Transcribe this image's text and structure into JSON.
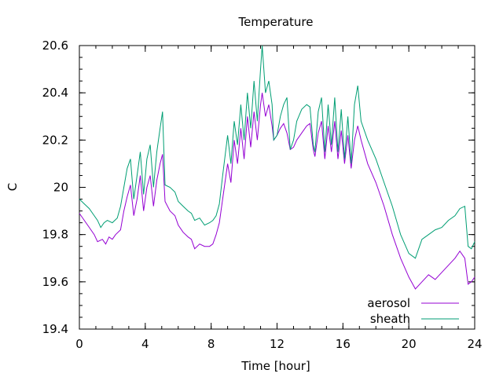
{
  "chart_data": {
    "type": "line",
    "title": "Temperature",
    "xlabel": "Time [hour]",
    "ylabel": "C",
    "xlim": [
      0,
      24
    ],
    "ylim": [
      19.4,
      20.6
    ],
    "xticks": [
      0,
      4,
      8,
      12,
      16,
      20,
      24
    ],
    "xtick_labels": [
      "0",
      "4",
      "8",
      "12",
      "16",
      "20",
      "24"
    ],
    "yticks": [
      19.4,
      19.6,
      19.8,
      20,
      20.2,
      20.4,
      20.6
    ],
    "ytick_labels": [
      "19.4",
      "19.6",
      "19.8",
      "20",
      "20.2",
      "20.4",
      "20.6"
    ],
    "grid": false,
    "legend_position": "bottom-right",
    "series": [
      {
        "name": "aerosol",
        "color": "#9400d3",
        "points": [
          [
            0,
            19.89
          ],
          [
            0.3,
            19.86
          ],
          [
            0.6,
            19.83
          ],
          [
            0.9,
            19.8
          ],
          [
            1.1,
            19.77
          ],
          [
            1.4,
            19.78
          ],
          [
            1.6,
            19.76
          ],
          [
            1.8,
            19.79
          ],
          [
            2.0,
            19.78
          ],
          [
            2.2,
            19.8
          ],
          [
            2.5,
            19.82
          ],
          [
            2.7,
            19.9
          ],
          [
            2.9,
            19.96
          ],
          [
            3.1,
            20.01
          ],
          [
            3.3,
            19.88
          ],
          [
            3.5,
            19.95
          ],
          [
            3.7,
            20.05
          ],
          [
            3.9,
            19.9
          ],
          [
            4.1,
            20.0
          ],
          [
            4.3,
            20.05
          ],
          [
            4.5,
            19.92
          ],
          [
            4.7,
            20.03
          ],
          [
            4.9,
            20.1
          ],
          [
            5.05,
            20.14
          ],
          [
            5.2,
            19.94
          ],
          [
            5.5,
            19.9
          ],
          [
            5.8,
            19.88
          ],
          [
            6.0,
            19.84
          ],
          [
            6.3,
            19.81
          ],
          [
            6.6,
            19.79
          ],
          [
            6.8,
            19.78
          ],
          [
            7.0,
            19.74
          ],
          [
            7.3,
            19.76
          ],
          [
            7.6,
            19.75
          ],
          [
            7.9,
            19.75
          ],
          [
            8.1,
            19.76
          ],
          [
            8.3,
            19.8
          ],
          [
            8.5,
            19.85
          ],
          [
            8.7,
            19.95
          ],
          [
            9.0,
            20.1
          ],
          [
            9.2,
            20.02
          ],
          [
            9.4,
            20.2
          ],
          [
            9.6,
            20.1
          ],
          [
            9.8,
            20.25
          ],
          [
            10.0,
            20.12
          ],
          [
            10.2,
            20.3
          ],
          [
            10.4,
            20.17
          ],
          [
            10.6,
            20.32
          ],
          [
            10.8,
            20.2
          ],
          [
            11.0,
            20.35
          ],
          [
            11.1,
            20.4
          ],
          [
            11.3,
            20.3
          ],
          [
            11.5,
            20.35
          ],
          [
            11.7,
            20.26
          ],
          [
            11.8,
            20.2
          ],
          [
            12.0,
            20.22
          ],
          [
            12.2,
            20.25
          ],
          [
            12.4,
            20.27
          ],
          [
            12.6,
            20.23
          ],
          [
            12.8,
            20.16
          ],
          [
            13.0,
            20.17
          ],
          [
            13.2,
            20.2
          ],
          [
            13.5,
            20.23
          ],
          [
            13.8,
            20.26
          ],
          [
            14.0,
            20.27
          ],
          [
            14.2,
            20.16
          ],
          [
            14.3,
            20.13
          ],
          [
            14.5,
            20.23
          ],
          [
            14.7,
            20.28
          ],
          [
            14.9,
            20.12
          ],
          [
            15.1,
            20.26
          ],
          [
            15.3,
            20.15
          ],
          [
            15.5,
            20.28
          ],
          [
            15.7,
            20.12
          ],
          [
            15.9,
            20.24
          ],
          [
            16.1,
            20.1
          ],
          [
            16.3,
            20.22
          ],
          [
            16.5,
            20.08
          ],
          [
            16.7,
            20.2
          ],
          [
            16.9,
            20.26
          ],
          [
            17.1,
            20.2
          ],
          [
            17.5,
            20.1
          ],
          [
            18.0,
            20.02
          ],
          [
            18.5,
            19.92
          ],
          [
            19.0,
            19.8
          ],
          [
            19.5,
            19.7
          ],
          [
            20.0,
            19.62
          ],
          [
            20.4,
            19.57
          ],
          [
            20.8,
            19.6
          ],
          [
            21.2,
            19.63
          ],
          [
            21.6,
            19.61
          ],
          [
            22.0,
            19.64
          ],
          [
            22.4,
            19.67
          ],
          [
            22.8,
            19.7
          ],
          [
            23.1,
            19.73
          ],
          [
            23.4,
            19.7
          ],
          [
            23.6,
            19.59
          ],
          [
            23.8,
            19.6
          ],
          [
            24.0,
            19.62
          ]
        ]
      },
      {
        "name": "sheath",
        "color": "#009e73",
        "points": [
          [
            0,
            19.95
          ],
          [
            0.3,
            19.93
          ],
          [
            0.6,
            19.91
          ],
          [
            0.9,
            19.88
          ],
          [
            1.1,
            19.86
          ],
          [
            1.3,
            19.83
          ],
          [
            1.5,
            19.85
          ],
          [
            1.7,
            19.86
          ],
          [
            2.0,
            19.85
          ],
          [
            2.3,
            19.87
          ],
          [
            2.5,
            19.92
          ],
          [
            2.7,
            20.0
          ],
          [
            2.9,
            20.08
          ],
          [
            3.1,
            20.12
          ],
          [
            3.3,
            19.95
          ],
          [
            3.5,
            20.05
          ],
          [
            3.7,
            20.15
          ],
          [
            3.9,
            19.97
          ],
          [
            4.1,
            20.12
          ],
          [
            4.3,
            20.18
          ],
          [
            4.5,
            20.0
          ],
          [
            4.7,
            20.15
          ],
          [
            4.9,
            20.25
          ],
          [
            5.05,
            20.32
          ],
          [
            5.2,
            20.01
          ],
          [
            5.5,
            20.0
          ],
          [
            5.8,
            19.98
          ],
          [
            6.0,
            19.94
          ],
          [
            6.3,
            19.92
          ],
          [
            6.6,
            19.9
          ],
          [
            6.8,
            19.89
          ],
          [
            7.0,
            19.86
          ],
          [
            7.3,
            19.87
          ],
          [
            7.6,
            19.84
          ],
          [
            7.9,
            19.85
          ],
          [
            8.1,
            19.86
          ],
          [
            8.3,
            19.88
          ],
          [
            8.5,
            19.93
          ],
          [
            8.7,
            20.05
          ],
          [
            9.0,
            20.22
          ],
          [
            9.2,
            20.1
          ],
          [
            9.4,
            20.28
          ],
          [
            9.6,
            20.18
          ],
          [
            9.8,
            20.35
          ],
          [
            10.0,
            20.2
          ],
          [
            10.2,
            20.4
          ],
          [
            10.4,
            20.25
          ],
          [
            10.6,
            20.45
          ],
          [
            10.8,
            20.28
          ],
          [
            11.0,
            20.5
          ],
          [
            11.1,
            20.6
          ],
          [
            11.3,
            20.4
          ],
          [
            11.5,
            20.45
          ],
          [
            11.7,
            20.35
          ],
          [
            11.8,
            20.2
          ],
          [
            12.0,
            20.22
          ],
          [
            12.2,
            20.3
          ],
          [
            12.4,
            20.35
          ],
          [
            12.6,
            20.38
          ],
          [
            12.8,
            20.16
          ],
          [
            13.0,
            20.2
          ],
          [
            13.2,
            20.28
          ],
          [
            13.5,
            20.33
          ],
          [
            13.8,
            20.35
          ],
          [
            14.0,
            20.34
          ],
          [
            14.2,
            20.18
          ],
          [
            14.3,
            20.15
          ],
          [
            14.5,
            20.32
          ],
          [
            14.7,
            20.38
          ],
          [
            14.9,
            20.15
          ],
          [
            15.1,
            20.35
          ],
          [
            15.3,
            20.18
          ],
          [
            15.5,
            20.38
          ],
          [
            15.7,
            20.15
          ],
          [
            15.9,
            20.33
          ],
          [
            16.1,
            20.12
          ],
          [
            16.3,
            20.3
          ],
          [
            16.5,
            20.1
          ],
          [
            16.7,
            20.35
          ],
          [
            16.9,
            20.43
          ],
          [
            17.1,
            20.28
          ],
          [
            17.5,
            20.2
          ],
          [
            18.0,
            20.12
          ],
          [
            18.5,
            20.02
          ],
          [
            19.0,
            19.92
          ],
          [
            19.5,
            19.8
          ],
          [
            20.0,
            19.72
          ],
          [
            20.4,
            19.7
          ],
          [
            20.8,
            19.78
          ],
          [
            21.2,
            19.8
          ],
          [
            21.6,
            19.82
          ],
          [
            22.0,
            19.83
          ],
          [
            22.4,
            19.86
          ],
          [
            22.8,
            19.88
          ],
          [
            23.1,
            19.91
          ],
          [
            23.4,
            19.92
          ],
          [
            23.6,
            19.75
          ],
          [
            23.8,
            19.74
          ],
          [
            24.0,
            19.77
          ]
        ]
      }
    ]
  }
}
